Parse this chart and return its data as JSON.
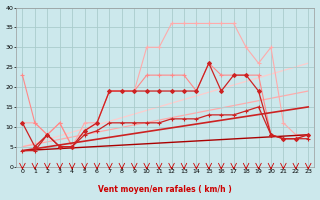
{
  "xlabel": "Vent moyen/en rafales ( km/h )",
  "background_color": "#cce8ec",
  "grid_color": "#aacccc",
  "xlim": [
    -0.5,
    23.5
  ],
  "ylim": [
    0,
    40
  ],
  "xticks": [
    0,
    1,
    2,
    3,
    4,
    5,
    6,
    7,
    8,
    9,
    10,
    11,
    12,
    13,
    14,
    15,
    16,
    17,
    18,
    19,
    20,
    21,
    22,
    23
  ],
  "yticks": [
    0,
    5,
    10,
    15,
    20,
    25,
    30,
    35,
    40
  ],
  "lines": [
    {
      "x": [
        0,
        1,
        2,
        3,
        4,
        5,
        6,
        7,
        8,
        9,
        10,
        11,
        12,
        13,
        14,
        15,
        16,
        17,
        18,
        19,
        20,
        21,
        22,
        23
      ],
      "y": [
        11,
        11,
        8,
        11,
        5,
        11,
        11,
        19,
        19,
        19,
        30,
        30,
        36,
        36,
        36,
        36,
        36,
        36,
        30,
        26,
        30,
        11,
        8,
        8
      ],
      "color": "#ffaaaa",
      "lw": 0.8,
      "marker": "+",
      "ms": 3.0,
      "zorder": 2
    },
    {
      "x": [
        0,
        1,
        2,
        3,
        4,
        5,
        6,
        7,
        8,
        9,
        10,
        11,
        12,
        13,
        14,
        15,
        16,
        17,
        18,
        19,
        20,
        21,
        22,
        23
      ],
      "y": [
        23,
        11,
        8,
        11,
        5,
        9,
        11,
        19,
        19,
        19,
        23,
        23,
        23,
        23,
        19,
        26,
        23,
        23,
        23,
        23,
        8,
        7,
        7,
        8
      ],
      "color": "#ff8888",
      "lw": 0.8,
      "marker": "+",
      "ms": 3.0,
      "zorder": 3
    },
    {
      "x": [
        0,
        1,
        2,
        3,
        4,
        5,
        6,
        7,
        8,
        9,
        10,
        11,
        12,
        13,
        14,
        15,
        16,
        17,
        18,
        19,
        20,
        21,
        22,
        23
      ],
      "y": [
        11,
        5,
        8,
        5,
        5,
        9,
        11,
        19,
        19,
        19,
        19,
        19,
        19,
        19,
        19,
        26,
        19,
        23,
        23,
        19,
        8,
        7,
        7,
        8
      ],
      "color": "#cc2222",
      "lw": 0.9,
      "marker": "D",
      "ms": 2.0,
      "zorder": 6
    },
    {
      "x": [
        0,
        1,
        2,
        3,
        4,
        5,
        6,
        7,
        8,
        9,
        10,
        11,
        12,
        13,
        14,
        15,
        16,
        17,
        18,
        19,
        20,
        21,
        22,
        23
      ],
      "y": [
        4,
        4,
        8,
        5,
        5,
        8,
        9,
        11,
        11,
        11,
        11,
        11,
        12,
        12,
        12,
        13,
        13,
        13,
        14,
        15,
        8,
        7,
        7,
        7
      ],
      "color": "#cc2222",
      "lw": 0.9,
      "marker": "+",
      "ms": 2.5,
      "zorder": 5
    },
    {
      "x": [
        0,
        23
      ],
      "y": [
        5,
        26
      ],
      "color": "#ffcccc",
      "lw": 0.9,
      "marker": null,
      "ms": 0,
      "zorder": 1
    },
    {
      "x": [
        0,
        23
      ],
      "y": [
        5,
        19
      ],
      "color": "#ffaaaa",
      "lw": 0.9,
      "marker": null,
      "ms": 0,
      "zorder": 1
    },
    {
      "x": [
        0,
        23
      ],
      "y": [
        4,
        15
      ],
      "color": "#cc2222",
      "lw": 1.2,
      "marker": null,
      "ms": 0,
      "zorder": 4
    },
    {
      "x": [
        0,
        23
      ],
      "y": [
        4,
        8
      ],
      "color": "#aa0000",
      "lw": 1.0,
      "marker": null,
      "ms": 0,
      "zorder": 4
    }
  ],
  "arrow_color": "#cc0000"
}
